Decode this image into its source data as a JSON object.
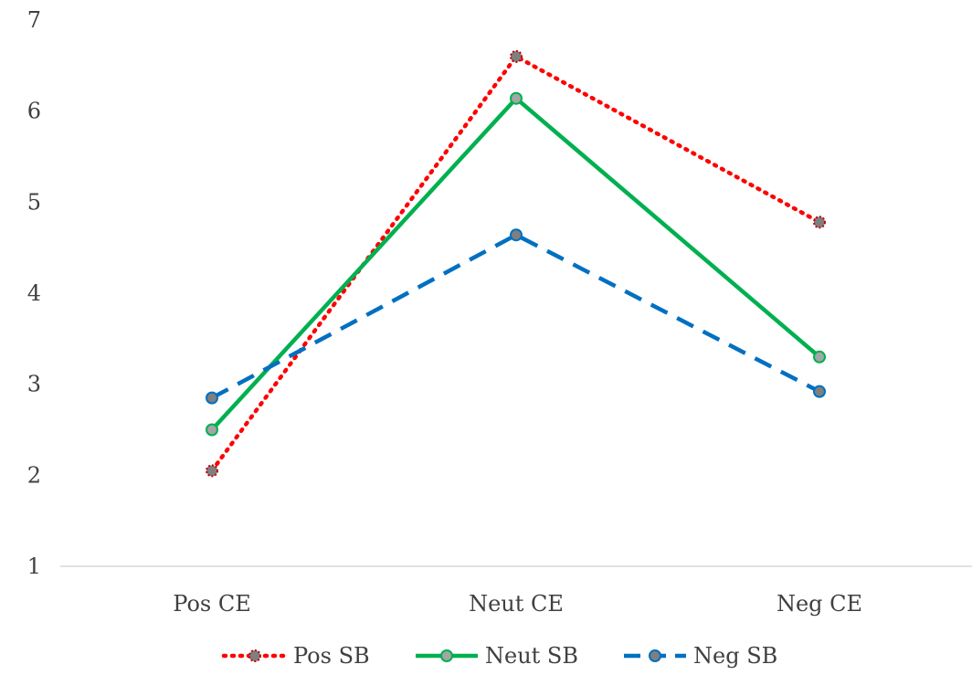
{
  "chart_data": {
    "type": "line",
    "categories": [
      "Pos CE",
      "Neut CE",
      "Neg CE"
    ],
    "ylim": [
      1,
      7
    ],
    "yticks": [
      "1",
      "2",
      "3",
      "4",
      "5",
      "6",
      "7"
    ],
    "grid": false,
    "legend_position": "bottom",
    "series": [
      {
        "name": "Pos SB",
        "values": [
          2.05,
          6.6,
          4.78
        ],
        "color": "#ff0000",
        "line_style": "dotted",
        "marker_fill": "#7f7f7f",
        "marker_stroke": "#c00000",
        "marker": "circle-dotted"
      },
      {
        "name": "Neut SB",
        "values": [
          2.5,
          6.14,
          3.3
        ],
        "color": "#00b050",
        "line_style": "solid",
        "marker_fill": "#a5a5a5",
        "marker_stroke": "#00b050",
        "marker": "circle"
      },
      {
        "name": "Neg SB",
        "values": [
          2.85,
          4.64,
          2.92
        ],
        "color": "#0070c0",
        "line_style": "dashed",
        "marker_fill": "#7f7f7f",
        "marker_stroke": "#0070c0",
        "marker": "circle-dashed"
      }
    ]
  }
}
